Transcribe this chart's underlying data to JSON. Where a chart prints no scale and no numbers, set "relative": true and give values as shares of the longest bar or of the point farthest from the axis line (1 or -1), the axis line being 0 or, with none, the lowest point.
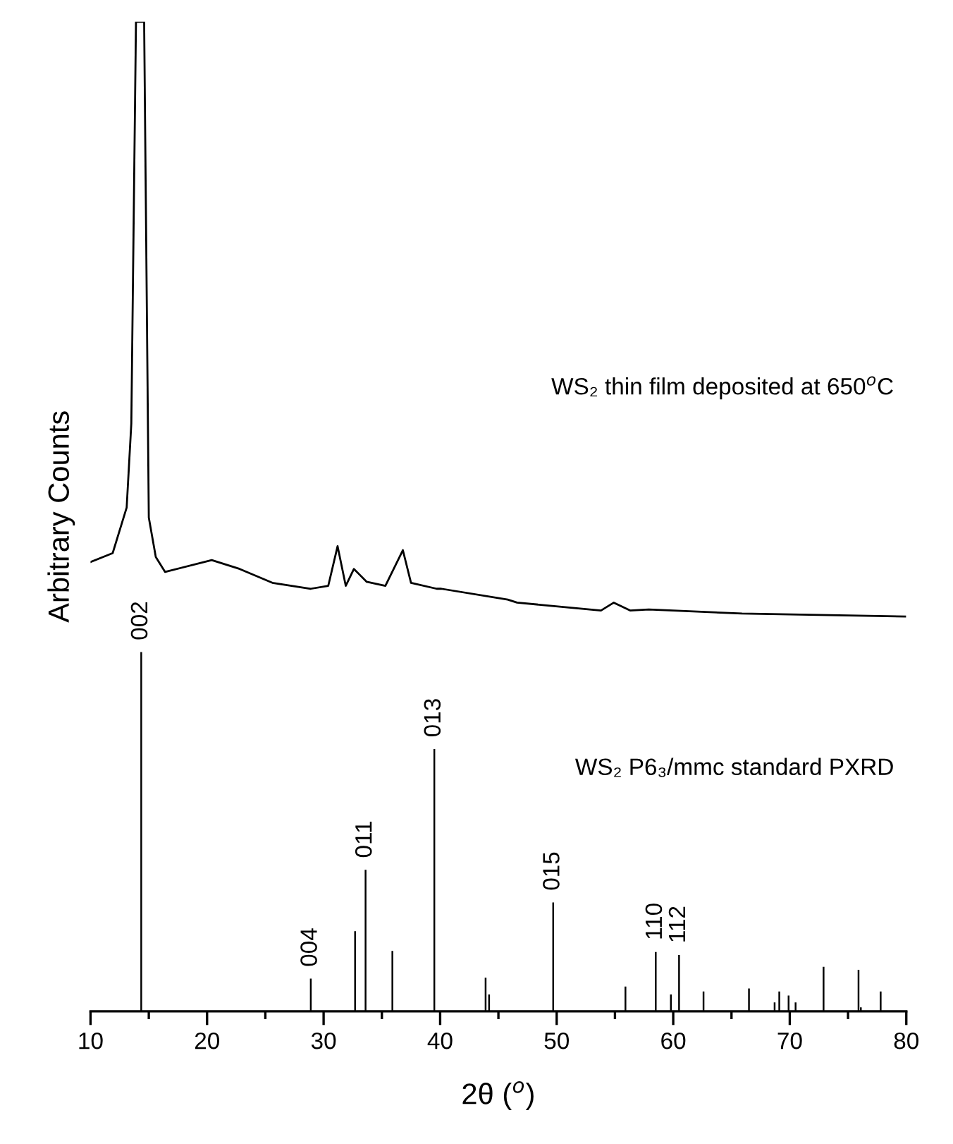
{
  "chart_data": {
    "type": "line",
    "relative": true,
    "xlabel": "2θ ($^{o}$)",
    "ylabel": "Arbitrary Counts",
    "xlim": [
      10,
      80
    ],
    "xticks": [
      10,
      {
        "value": 15,
        "label": null
      },
      20,
      {
        "value": 25,
        "label": null
      },
      30,
      {
        "value": 35,
        "label": null
      },
      40,
      {
        "value": 45,
        "label": null
      },
      50,
      {
        "value": 55,
        "label": null
      },
      60,
      {
        "value": 65,
        "label": null
      },
      70,
      {
        "value": 75,
        "label": null
      },
      80
    ],
    "grid": false,
    "legend": false,
    "marker": "none",
    "line_style": "solid",
    "series": [
      {
        "color": "#000000",
        "x": [
          10,
          11.9,
          13.1,
          13.5,
          13.9,
          14.6,
          15.0,
          15.6,
          16.4,
          20.4,
          22.8,
          25.6,
          28.9,
          30.4,
          31.2,
          31.9,
          32.6,
          33.7,
          35.3,
          36.8,
          37.5,
          39.7,
          40.1,
          45.8,
          46.6,
          53.8,
          54.9,
          56.3,
          57.9,
          65.9,
          79.9
        ],
        "values": [
          0.454,
          0.463,
          0.509,
          0.594,
          1.0,
          1.0,
          0.499,
          0.459,
          0.444,
          0.456,
          0.447,
          0.433,
          0.427,
          0.43,
          0.47,
          0.43,
          0.447,
          0.434,
          0.43,
          0.466,
          0.433,
          0.427,
          0.427,
          0.416,
          0.413,
          0.405,
          0.413,
          0.405,
          0.406,
          0.402,
          0.399
        ]
      },
      {
        "type": "bar",
        "color": "#000000",
        "x": [
          14.35,
          28.9,
          32.7,
          33.6,
          35.9,
          39.5,
          43.9,
          44.2,
          49.7,
          55.9,
          58.5,
          59.8,
          60.5,
          62.6,
          66.5,
          68.7,
          69.1,
          69.9,
          70.5,
          72.9,
          75.9,
          76.1,
          77.1,
          77.8
        ],
        "values": [
          0.363,
          0.033,
          0.081,
          0.143,
          0.061,
          0.265,
          0.034,
          0.017,
          0.11,
          0.025,
          0.06,
          0.017,
          0.057,
          0.02,
          0.023,
          0.009,
          0.02,
          0.016,
          0.009,
          0.045,
          0.042,
          0.004,
          null,
          0.02
        ]
      }
    ],
    "annotations": [
      "WS₂ thin film deposited at 650$^{o}$C",
      "WS₂ P6₃/mmc standard PXRD",
      {
        "text": "002",
        "x": 14.35,
        "y": 0.363
      },
      {
        "text": "004",
        "x": 28.9,
        "y": 0.033
      },
      {
        "text": "011",
        "x": 33.6,
        "y": 0.143
      },
      {
        "text": "013",
        "x": 39.5,
        "y": 0.265
      },
      {
        "text": "015",
        "x": 49.7,
        "y": 0.11
      },
      {
        "text": "110",
        "x": 58.5,
        "y": 0.06
      },
      {
        "text": "112",
        "x": 60.5,
        "y": 0.057
      }
    ]
  }
}
